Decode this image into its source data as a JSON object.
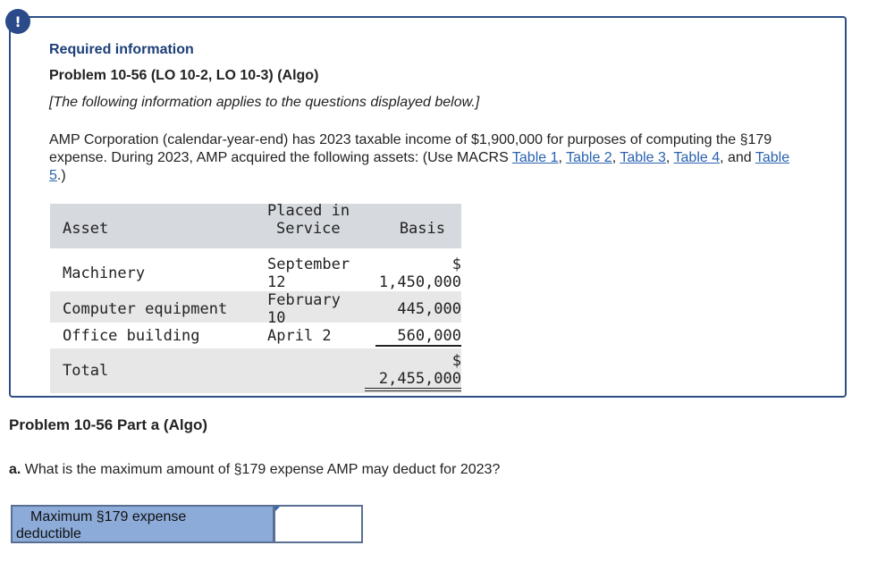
{
  "alert_icon": "!",
  "required_info": "Required information",
  "problem_title": "Problem 10-56 (LO 10-2, LO 10-3) (Algo)",
  "applies_note": "[The following information applies to the questions displayed below.]",
  "description": {
    "text1": "AMP Corporation (calendar-year-end) has 2023 taxable income of $1,900,000 for purposes of computing the §179 expense. During 2023, AMP acquired the following assets: (Use MACRS ",
    "table1": "Table 1",
    "sep1": ", ",
    "table2": "Table 2",
    "sep2": ", ",
    "table3": "Table 3",
    "sep3": ", ",
    "table4": "Table 4",
    "sep4": ", and ",
    "table5": "Table 5",
    "end": ".)"
  },
  "assets_table": {
    "headers": {
      "asset": "Asset",
      "placed_line1": "Placed in",
      "placed_line2": "Service",
      "basis": "Basis"
    },
    "rows": [
      {
        "asset": "Machinery",
        "placed_line1": "September",
        "placed_line2": "12",
        "basis_line1": "$",
        "basis_line2": "1,450,000"
      },
      {
        "asset": "Computer equipment",
        "placed_line1": "February",
        "placed_line2": "10",
        "basis": "445,000"
      },
      {
        "asset": "Office building",
        "placed": "April 2",
        "basis": "560,000"
      }
    ],
    "total": {
      "label": "Total",
      "basis_line1": "$",
      "basis_line2": "2,455,000"
    }
  },
  "part_title": "Problem 10-56 Part a (Algo)",
  "question": {
    "prefix": "a.",
    "text": " What is the maximum amount of §179 expense AMP may deduct for 2023?"
  },
  "answer": {
    "label_line1": "Maximum §179 expense",
    "label_line2": "deductible",
    "value": ""
  },
  "colors": {
    "accent": "#2d4f86",
    "link": "#2a62b0",
    "answer_label_bg": "#8cabd8"
  }
}
